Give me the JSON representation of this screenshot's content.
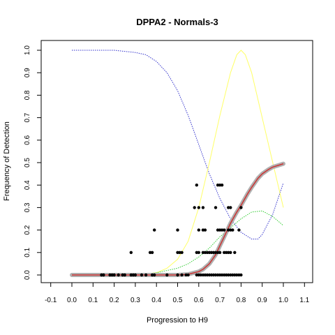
{
  "chart_data": {
    "type": "scatter",
    "title": "DPPA2 - Normals-3",
    "xlabel": "Progression to H9",
    "ylabel": "Frequency of Detection",
    "xlim": [
      -0.1,
      1.1
    ],
    "ylim": [
      0,
      1.0
    ],
    "xticks": [
      "-0.1",
      "0.0",
      "0.1",
      "0.2",
      "0.3",
      "0.4",
      "0.5",
      "0.6",
      "0.7",
      "0.8",
      "0.9",
      "1.0",
      "1.1"
    ],
    "yticks": [
      "0.0",
      "0.1",
      "0.2",
      "0.3",
      "0.4",
      "0.5",
      "0.6",
      "0.7",
      "0.8",
      "0.9",
      "1.0"
    ],
    "grid": false,
    "colors": {
      "points": "#000000",
      "fit": "#cc3333",
      "fit_band": "#b0b0b0",
      "blue_curve": "#3333cc",
      "yellow_curve": "#ffff66",
      "green_curve": "#33cc33"
    },
    "series": [
      {
        "kind": "points",
        "x": [
          0.14,
          0.15,
          0.18,
          0.19,
          0.2,
          0.22,
          0.24,
          0.25,
          0.28,
          0.29,
          0.3,
          0.33,
          0.35,
          0.38,
          0.39,
          0.45,
          0.5,
          0.52,
          0.54,
          0.55,
          0.59,
          0.6,
          0.61,
          0.62,
          0.63,
          0.64,
          0.65,
          0.66,
          0.67,
          0.68,
          0.69,
          0.7,
          0.71,
          0.72,
          0.73,
          0.74,
          0.75,
          0.76,
          0.77,
          0.78,
          0.79,
          0.8,
          0.28,
          0.37,
          0.38,
          0.5,
          0.51,
          0.52,
          0.59,
          0.6,
          0.62,
          0.63,
          0.64,
          0.65,
          0.66,
          0.67,
          0.68,
          0.69,
          0.7,
          0.72,
          0.73,
          0.74,
          0.75,
          0.77,
          0.39,
          0.5,
          0.6,
          0.62,
          0.63,
          0.69,
          0.7,
          0.71,
          0.72,
          0.74,
          0.75,
          0.76,
          0.79,
          0.58,
          0.6,
          0.62,
          0.68,
          0.74,
          0.75,
          0.8,
          0.59,
          0.69,
          0.7,
          0.71
        ],
        "y": [
          0,
          0,
          0,
          0,
          0,
          0,
          0,
          0,
          0,
          0,
          0,
          0,
          0,
          0,
          0,
          0,
          0,
          0,
          0,
          0,
          0,
          0,
          0,
          0,
          0,
          0,
          0,
          0,
          0,
          0,
          0,
          0,
          0,
          0,
          0,
          0,
          0,
          0,
          0,
          0,
          0,
          0,
          0.1,
          0.1,
          0.1,
          0.1,
          0.1,
          0.1,
          0.1,
          0.1,
          0.1,
          0.1,
          0.1,
          0.1,
          0.1,
          0.1,
          0.1,
          0.1,
          0.1,
          0.1,
          0.1,
          0.1,
          0.1,
          0.1,
          0.2,
          0.2,
          0.2,
          0.2,
          0.2,
          0.2,
          0.2,
          0.2,
          0.2,
          0.2,
          0.2,
          0.2,
          0.2,
          0.3,
          0.3,
          0.3,
          0.3,
          0.3,
          0.3,
          0.3,
          0.4,
          0.4,
          0.4,
          0.4
        ]
      },
      {
        "kind": "fit",
        "x": [
          0.0,
          0.1,
          0.2,
          0.3,
          0.4,
          0.5,
          0.55,
          0.6,
          0.62,
          0.65,
          0.68,
          0.7,
          0.72,
          0.75,
          0.78,
          0.8,
          0.83,
          0.85,
          0.88,
          0.9,
          0.93,
          0.95,
          1.0
        ],
        "y": [
          0,
          0,
          0,
          0,
          0,
          0,
          0.003,
          0.015,
          0.025,
          0.05,
          0.09,
          0.13,
          0.17,
          0.23,
          0.28,
          0.31,
          0.36,
          0.39,
          0.43,
          0.45,
          0.47,
          0.48,
          0.495
        ]
      },
      {
        "kind": "blue",
        "x": [
          0.0,
          0.1,
          0.2,
          0.3,
          0.35,
          0.4,
          0.45,
          0.5,
          0.55,
          0.6,
          0.65,
          0.7,
          0.75,
          0.8,
          0.85,
          0.88,
          0.9,
          0.95,
          1.0
        ],
        "y": [
          1.0,
          1.0,
          1.0,
          0.99,
          0.98,
          0.95,
          0.9,
          0.82,
          0.71,
          0.58,
          0.45,
          0.34,
          0.25,
          0.19,
          0.16,
          0.16,
          0.18,
          0.27,
          0.41
        ]
      },
      {
        "kind": "yellow",
        "x": [
          0.0,
          0.2,
          0.3,
          0.4,
          0.45,
          0.5,
          0.55,
          0.6,
          0.65,
          0.7,
          0.75,
          0.78,
          0.8,
          0.82,
          0.85,
          0.9,
          0.95,
          1.0
        ],
        "y": [
          0,
          0,
          0,
          0.01,
          0.03,
          0.07,
          0.15,
          0.3,
          0.5,
          0.71,
          0.9,
          0.98,
          1.0,
          0.98,
          0.9,
          0.7,
          0.5,
          0.3
        ]
      },
      {
        "kind": "green",
        "x": [
          0.0,
          0.2,
          0.3,
          0.4,
          0.5,
          0.55,
          0.6,
          0.65,
          0.7,
          0.75,
          0.8,
          0.85,
          0.9,
          0.95,
          1.0
        ],
        "y": [
          0,
          0,
          0,
          0.01,
          0.03,
          0.05,
          0.08,
          0.12,
          0.17,
          0.21,
          0.25,
          0.28,
          0.285,
          0.26,
          0.22
        ]
      }
    ]
  }
}
